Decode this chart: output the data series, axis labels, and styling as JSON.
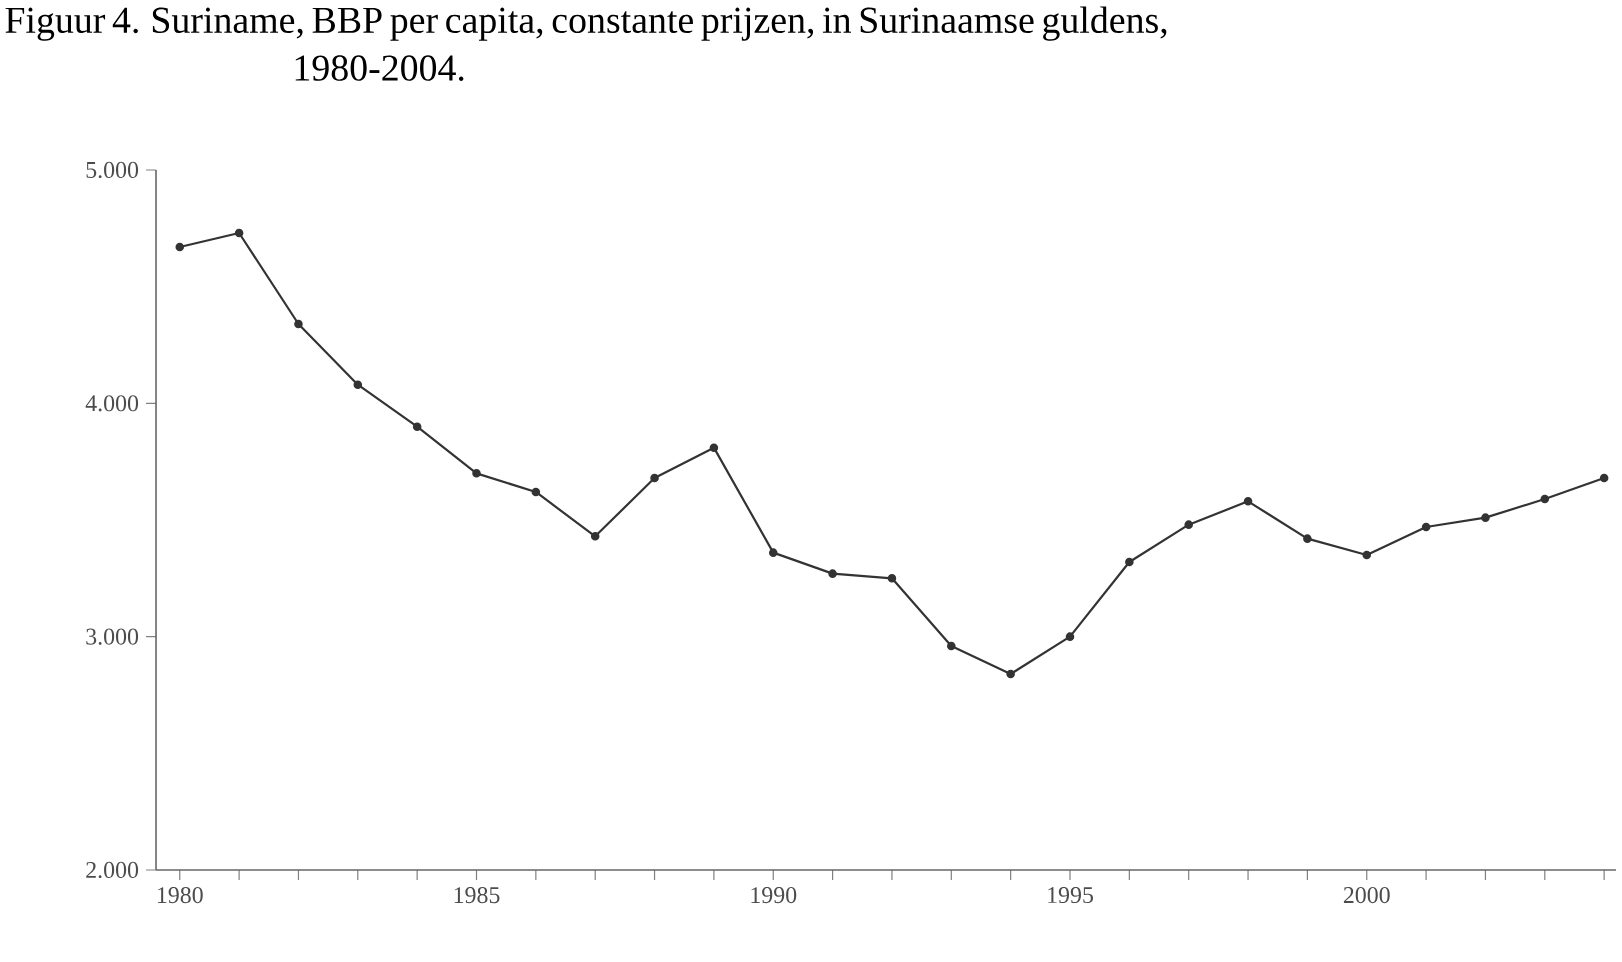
{
  "chart_data": {
    "type": "line",
    "title": "Figuur 4. Suriname, BBP per capita, constante prijzen, in Surinaamse guldens, 1980-2004.",
    "x": [
      1980,
      1981,
      1982,
      1983,
      1984,
      1985,
      1986,
      1987,
      1988,
      1989,
      1990,
      1991,
      1992,
      1993,
      1994,
      1995,
      1996,
      1997,
      1998,
      1999,
      2000,
      2001,
      2002,
      2003,
      2004
    ],
    "series": [
      {
        "color": "#333333",
        "values": [
          4670,
          4730,
          4340,
          4080,
          3900,
          3700,
          3620,
          3430,
          3680,
          3810,
          3360,
          3270,
          3250,
          2960,
          2840,
          3000,
          3320,
          3480,
          3580,
          3420,
          3350,
          3470,
          3510,
          3590,
          3680
        ]
      }
    ],
    "xlim": [
      1979.6,
      2004.2
    ],
    "xticks": [
      1980,
      {
        "value": 1981,
        "label": null
      },
      {
        "value": 1982,
        "label": null
      },
      {
        "value": 1983,
        "label": null
      },
      {
        "value": 1984,
        "label": null
      },
      1985,
      {
        "value": 1986,
        "label": null
      },
      {
        "value": 1987,
        "label": null
      },
      {
        "value": 1988,
        "label": null
      },
      {
        "value": 1989,
        "label": null
      },
      1990,
      {
        "value": 1991,
        "label": null
      },
      {
        "value": 1992,
        "label": null
      },
      {
        "value": 1993,
        "label": null
      },
      {
        "value": 1994,
        "label": null
      },
      1995,
      {
        "value": 1996,
        "label": null
      },
      {
        "value": 1997,
        "label": null
      },
      {
        "value": 1998,
        "label": null
      },
      {
        "value": 1999,
        "label": null
      },
      2000,
      {
        "value": 2001,
        "label": null
      },
      {
        "value": 2002,
        "label": null
      },
      {
        "value": 2003,
        "label": null
      },
      {
        "value": 2004,
        "label": null
      }
    ],
    "ylim": [
      2000,
      5000
    ],
    "yticks": [
      {
        "value": 2000,
        "label": "2.000"
      },
      {
        "value": 3000,
        "label": "3.000"
      },
      {
        "value": 4000,
        "label": "4.000"
      },
      {
        "value": 5000,
        "label": "5.000"
      }
    ],
    "grid": false,
    "marker": "circle",
    "line_style": "solid"
  }
}
